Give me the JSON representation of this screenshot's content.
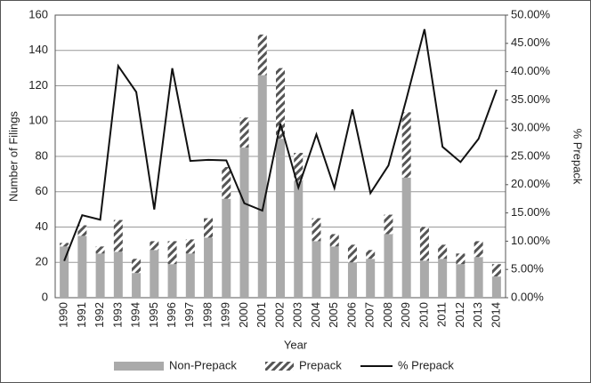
{
  "chart_data": {
    "type": "bar",
    "stacked": true,
    "x_label": "Year",
    "y_label": "Number of Filings",
    "y2_label": "% Prepack",
    "categories": [
      "1990",
      "1991",
      "1992",
      "1993",
      "1994",
      "1995",
      "1996",
      "1997",
      "1998",
      "1999",
      "2000",
      "2001",
      "2002",
      "2003",
      "2004",
      "2005",
      "2006",
      "2007",
      "2008",
      "2009",
      "2010",
      "2011",
      "2012",
      "2013",
      "2014"
    ],
    "series": [
      {
        "name": "Non-Prepack",
        "color": "#aaaaaa",
        "values": [
          29,
          35,
          25,
          26,
          14,
          27,
          19,
          25,
          34,
          56,
          85,
          126,
          90,
          66,
          32,
          29,
          20,
          22,
          36,
          68,
          21,
          22,
          19,
          23,
          12
        ]
      },
      {
        "name": "Prepack",
        "color": "#555555",
        "hatch": true,
        "values": [
          2,
          6,
          4,
          18,
          8,
          5,
          13,
          8,
          11,
          18,
          17,
          23,
          40,
          16,
          13,
          7,
          10,
          5,
          11,
          37,
          19,
          8,
          6,
          9,
          7
        ]
      },
      {
        "name": "% Prepack",
        "type": "line",
        "axis": "y2",
        "color": "#111111",
        "values": [
          6.5,
          14.6,
          13.8,
          41,
          36.4,
          15.6,
          40.6,
          24.2,
          24.4,
          24.3,
          16.7,
          15.4,
          30.8,
          19.5,
          28.9,
          19.4,
          33.3,
          18.5,
          23.4,
          35.2,
          47.5,
          26.7,
          24,
          28.1,
          36.8
        ]
      }
    ],
    "ylim": [
      0,
      160
    ],
    "yticks": [
      0,
      20,
      40,
      60,
      80,
      100,
      120,
      140,
      160
    ],
    "y2lim": [
      0,
      50
    ],
    "y2ticks": [
      {
        "value": 0,
        "label": "0.00%"
      },
      {
        "value": 5,
        "label": "5.00%"
      },
      {
        "value": 10,
        "label": "10.00%"
      },
      {
        "value": 15,
        "label": "15.00%"
      },
      {
        "value": 20,
        "label": "20.00%"
      },
      {
        "value": 25,
        "label": "25.00%"
      },
      {
        "value": 30,
        "label": "30.00%"
      },
      {
        "value": 35,
        "label": "35.00%"
      },
      {
        "value": 40,
        "label": "40.00%"
      },
      {
        "value": 45,
        "label": "45.00%"
      },
      {
        "value": 50,
        "label": "50.00%"
      }
    ],
    "grid": true,
    "legend": "bottom"
  }
}
